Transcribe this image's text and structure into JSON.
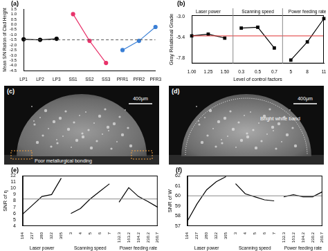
{
  "chart_data": [
    {
      "panel": "(a)",
      "type": "line",
      "categories": [
        "LP1",
        "LP2",
        "LP3",
        "SS1",
        "SS2",
        "SS3",
        "PFR1",
        "PFR2",
        "PFR3"
      ],
      "series": [
        {
          "color": "#000000",
          "values": [
            -1.45,
            -1.5,
            -1.4,
            null,
            null,
            null,
            null,
            null,
            null
          ]
        },
        {
          "color": "#e8336b",
          "values": [
            null,
            null,
            null,
            1.0,
            -1.6,
            -3.75,
            null,
            null,
            null
          ]
        },
        {
          "color": "#3a7fd5",
          "values": [
            null,
            null,
            null,
            null,
            null,
            null,
            -2.5,
            -1.6,
            -0.25
          ]
        }
      ],
      "marker": "circle",
      "y_label": "Mean S/N Ration of Clad Height",
      "ylim": [
        -4.5,
        1.5
      ],
      "yticks": [
        -4.5,
        {
          "value": -4,
          "label": "-4.0"
        },
        -3.5,
        {
          "value": -3,
          "label": "-3.0"
        },
        -2.5,
        {
          "value": -2,
          "label": "-2.0"
        },
        -1.5,
        {
          "value": -1,
          "label": "-1.0"
        },
        -0.5,
        {
          "value": 0,
          "label": "0.0"
        },
        0.5,
        {
          "value": 1,
          "label": "1.0"
        },
        1.5
      ],
      "grid": false,
      "mean_line": {
        "value": -1.5,
        "color": "#555555",
        "line_style": "dashed"
      }
    },
    {
      "panel": "(b)",
      "type": "line",
      "categories": [
        "1.00",
        "1.25",
        "1.50",
        "0.3",
        "0.5",
        "0.7",
        "5",
        "8",
        "11"
      ],
      "x_groups": [
        "Laser power",
        "Scanning speed",
        "Power feeding rate"
      ],
      "series": [
        {
          "color": "#000000",
          "values": [
            -5.2,
            -5.0,
            -5.45,
            null,
            null,
            null,
            null,
            null,
            null
          ]
        },
        {
          "color": "#000000",
          "values": [
            null,
            null,
            null,
            -4.3,
            -4.2,
            -6.6,
            null,
            null,
            null
          ]
        },
        {
          "color": "#000000",
          "values": [
            null,
            null,
            null,
            null,
            null,
            null,
            -8.0,
            -5.9,
            -3.2
          ]
        }
      ],
      "marker": "square",
      "x_label": "Level of control factors",
      "y_label": "Gray Relational Grade",
      "ylim": [
        -8.4,
        -2.8
      ],
      "yticks": [
        -7.8,
        -5.4,
        {
          "value": -3,
          "label": "-3.0"
        }
      ],
      "grid": false,
      "mean_line": {
        "value": -5.2,
        "color": "#e03030",
        "line_style": "solid"
      }
    },
    {
      "panel": "(e)",
      "type": "line",
      "categories": [
        "194",
        "237",
        "280",
        "322",
        "365",
        "3",
        "4",
        "5",
        "6",
        "7",
        "132.3",
        "163.2",
        "194.2",
        "230.2",
        "260.7"
      ],
      "x_groups": [
        "Laser power",
        "Scanning speed",
        "Power feeding rate"
      ],
      "series": [
        {
          "color": "#000000",
          "values": [
            5.9,
            7.3,
            8.7,
            9.0,
            11.6,
            null,
            null,
            null,
            null,
            null,
            null,
            null,
            null,
            null,
            null
          ]
        },
        {
          "color": "#000000",
          "values": [
            null,
            null,
            null,
            null,
            null,
            6.0,
            6.8,
            8.3,
            9.5,
            10.7,
            null,
            null,
            null,
            null,
            null
          ]
        },
        {
          "color": "#000000",
          "values": [
            null,
            null,
            null,
            null,
            null,
            null,
            null,
            null,
            null,
            null,
            7.8,
            10.1,
            8.7,
            7.9,
            7.0
          ]
        }
      ],
      "marker": "none",
      "y_label": "SNR of η",
      "ylim": [
        4,
        12
      ],
      "yticks": [
        4,
        5,
        6,
        7,
        8,
        9,
        10,
        11,
        12
      ],
      "grid": false,
      "mean_line": {
        "value": 8.3,
        "color": "#888888",
        "line_style": "solid"
      }
    },
    {
      "panel": "(f)",
      "type": "line",
      "categories": [
        "194",
        "237",
        "280",
        "322",
        "365",
        "3",
        "4",
        "5",
        "6",
        "7",
        "132.3",
        "163.2",
        "194.2",
        "230.2",
        "260.7"
      ],
      "x_groups": [
        "Laser power",
        "Scanning speed",
        "Power feeding rate"
      ],
      "series": [
        {
          "color": "#000000",
          "values": [
            57.5,
            59.2,
            60.6,
            61.4,
            61.9,
            null,
            null,
            null,
            null,
            null,
            null,
            null,
            null,
            null,
            null
          ]
        },
        {
          "color": "#000000",
          "values": [
            null,
            null,
            null,
            null,
            null,
            61.2,
            60.2,
            59.9,
            59.6,
            59.5,
            null,
            null,
            null,
            null,
            null
          ]
        },
        {
          "color": "#000000",
          "values": [
            null,
            null,
            null,
            null,
            null,
            null,
            null,
            null,
            null,
            null,
            59.9,
            60.1,
            59.9,
            59.9,
            60.4
          ]
        }
      ],
      "marker": "none",
      "y_label": "SNR of W",
      "ylim": [
        57,
        62
      ],
      "yticks": [
        57,
        58,
        59,
        60,
        61,
        62
      ],
      "grid": false,
      "mean_line": {
        "value": 60,
        "color": "#888888",
        "line_style": "solid"
      }
    }
  ],
  "micrographs": [
    {
      "panel": "(c)",
      "annotation": "Poor metallurgical bonding",
      "scale_bar": "400μm"
    },
    {
      "panel": "(d)",
      "annotation": "Bright white band",
      "scale_bar": "400μm"
    }
  ]
}
